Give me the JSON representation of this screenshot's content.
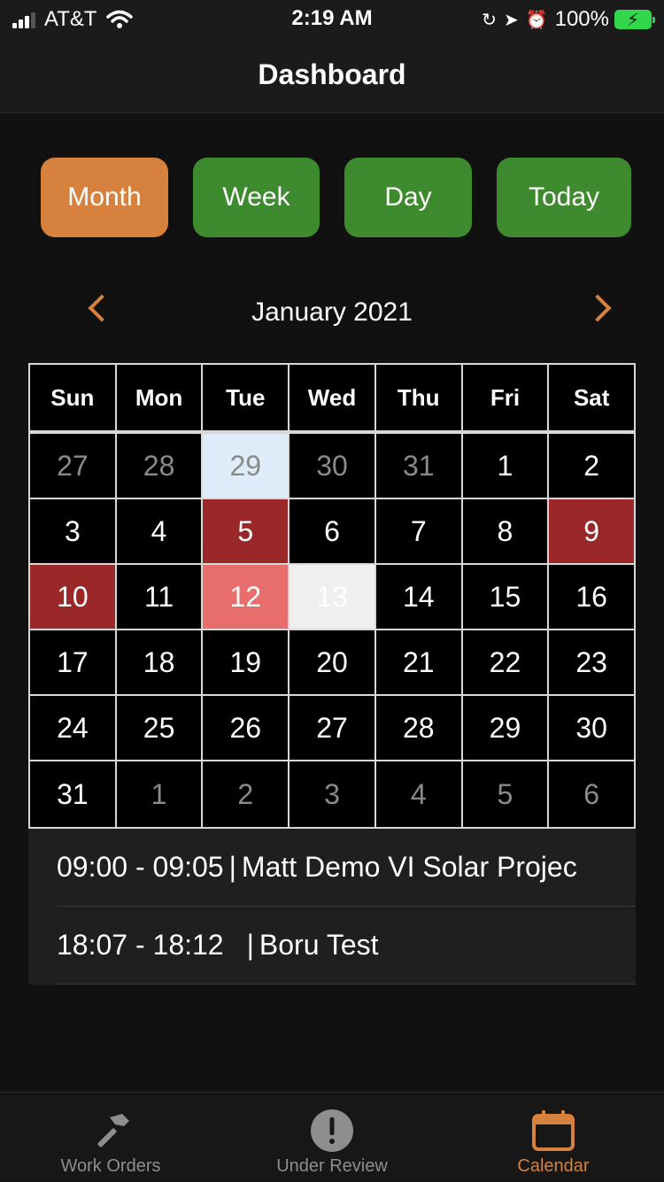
{
  "status": {
    "carrier": "AT&T",
    "time": "2:19 AM",
    "battery": "100%"
  },
  "nav": {
    "title": "Dashboard"
  },
  "view_buttons": [
    {
      "label": "Month",
      "color": "#d6813d"
    },
    {
      "label": "Week",
      "color": "#3e8a2e"
    },
    {
      "label": "Day",
      "color": "#3e8a2e"
    },
    {
      "label": "Today",
      "color": "#3e8a2e"
    }
  ],
  "calendar": {
    "month_label": "January 2021",
    "weekdays": [
      "Sun",
      "Mon",
      "Tue",
      "Wed",
      "Thu",
      "Fri",
      "Sat"
    ],
    "weeks": [
      [
        "27",
        "28",
        "29",
        "30",
        "31",
        "1",
        "2"
      ],
      [
        "3",
        "4",
        "5",
        "6",
        "7",
        "8",
        "9"
      ],
      [
        "10",
        "11",
        "12",
        "13",
        "14",
        "15",
        "16"
      ],
      [
        "17",
        "18",
        "19",
        "20",
        "21",
        "22",
        "23"
      ],
      [
        "24",
        "25",
        "26",
        "27",
        "28",
        "29",
        "30"
      ],
      [
        "31",
        "1",
        "2",
        "3",
        "4",
        "5",
        "6"
      ]
    ]
  },
  "events": [
    {
      "time": "09:00 - 09:05",
      "title": "Matt Demo VI Solar Projec"
    },
    {
      "time": "18:07 - 18:12",
      "title": "Boru Test"
    }
  ],
  "tabs": [
    {
      "label": "Work Orders",
      "icon": "hammer-icon"
    },
    {
      "label": "Under Review",
      "icon": "alert-icon"
    },
    {
      "label": "Calendar",
      "icon": "calendar-icon"
    }
  ],
  "colors": {
    "accent": "#d6813d",
    "green": "#3e8a2e",
    "event_dark": "#9a2828",
    "event_pink": "#e86d6d"
  }
}
